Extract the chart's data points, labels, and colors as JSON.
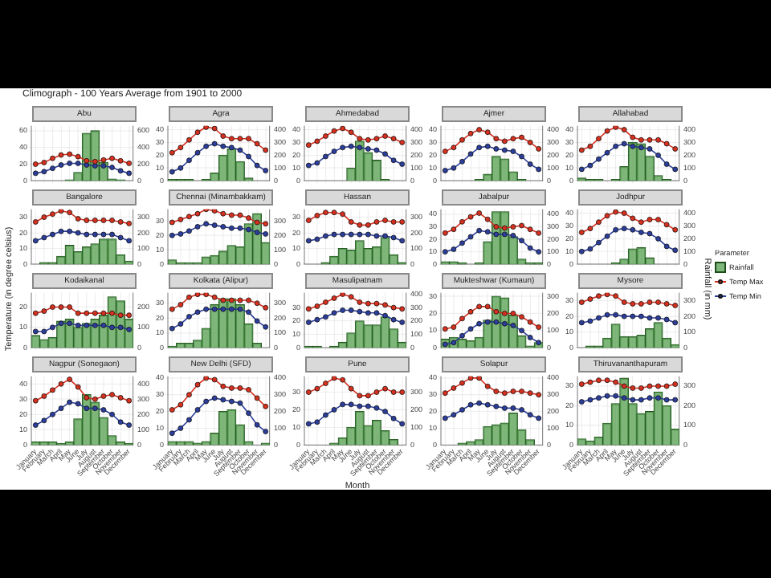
{
  "chart_data": [
    {
      "type": "other",
      "title": "Climograph - 100 Years Average from 1901 to 2000"
    },
    {
      "type": "bar",
      "title": "Abu",
      "categories": [
        null,
        null,
        null,
        null,
        null,
        null,
        null,
        null,
        null,
        null,
        null,
        null
      ],
      "ylim": [
        0,
        66
      ],
      "yticks": [
        0,
        20,
        40,
        60
      ],
      "y2lim": [
        0,
        660
      ],
      "y2ticks": [
        0,
        200,
        400,
        600
      ],
      "grid": true,
      "marker": "circle",
      "tick_labels": "y",
      "series": [
        {
          "type": "bar",
          "axis": "y2",
          "color": "#5fa55a",
          "values": [
            0,
            0,
            0,
            0,
            10,
            100,
            570,
            600,
            220,
            20,
            10,
            0
          ]
        },
        {
          "type": "line",
          "color": "#d7301f",
          "values": [
            20,
            22,
            27,
            31,
            32,
            29,
            24,
            23,
            25,
            27,
            24,
            21
          ]
        },
        {
          "type": "line",
          "color": "#2c3e9c",
          "values": [
            9,
            11,
            15,
            19,
            21,
            21,
            19,
            18,
            18,
            16,
            12,
            9
          ]
        }
      ]
    },
    {
      "type": "bar",
      "title": "Agra",
      "categories": [
        null,
        null,
        null,
        null,
        null,
        null,
        null,
        null,
        null,
        null,
        null,
        null
      ],
      "ylim": [
        0,
        43
      ],
      "yticks": [
        0,
        10,
        20,
        30,
        40
      ],
      "y2lim": [
        0,
        430
      ],
      "y2ticks": [
        0,
        100,
        200,
        300,
        400
      ],
      "grid": true,
      "marker": "circle",
      "tick_labels": "y",
      "series": [
        {
          "type": "bar",
          "axis": "y2",
          "color": "#5fa55a",
          "values": [
            10,
            10,
            10,
            0,
            10,
            60,
            200,
            250,
            150,
            20,
            0,
            0
          ]
        },
        {
          "type": "line",
          "color": "#d7301f",
          "values": [
            22,
            26,
            32,
            38,
            42,
            41,
            35,
            33,
            33,
            33,
            29,
            24
          ]
        },
        {
          "type": "line",
          "color": "#2c3e9c",
          "values": [
            7,
            10,
            16,
            22,
            27,
            29,
            27,
            26,
            24,
            19,
            12,
            8
          ]
        }
      ]
    },
    {
      "type": "bar",
      "title": "Ahmedabad",
      "categories": [
        null,
        null,
        null,
        null,
        null,
        null,
        null,
        null,
        null,
        null,
        null,
        null
      ],
      "ylim": [
        0,
        43
      ],
      "yticks": [
        0,
        10,
        20,
        30,
        40
      ],
      "y2lim": [
        0,
        430
      ],
      "y2ticks": [
        0,
        100,
        200,
        300,
        400
      ],
      "grid": true,
      "marker": "circle",
      "tick_labels": "y",
      "series": [
        {
          "type": "bar",
          "axis": "y2",
          "color": "#5fa55a",
          "values": [
            0,
            0,
            0,
            0,
            0,
            100,
            310,
            220,
            160,
            10,
            0,
            0
          ]
        },
        {
          "type": "line",
          "color": "#d7301f",
          "values": [
            28,
            31,
            35,
            39,
            41,
            38,
            33,
            32,
            33,
            35,
            33,
            30
          ]
        },
        {
          "type": "line",
          "color": "#2c3e9c",
          "values": [
            12,
            14,
            19,
            23,
            26,
            27,
            26,
            25,
            24,
            21,
            16,
            13
          ]
        }
      ]
    },
    {
      "type": "bar",
      "title": "Ajmer",
      "categories": [
        null,
        null,
        null,
        null,
        null,
        null,
        null,
        null,
        null,
        null,
        null,
        null
      ],
      "ylim": [
        0,
        43
      ],
      "yticks": [
        0,
        10,
        20,
        30,
        40
      ],
      "y2lim": [
        0,
        430
      ],
      "y2ticks": [
        0,
        100,
        200,
        300,
        400
      ],
      "grid": true,
      "marker": "circle",
      "tick_labels": "y",
      "series": [
        {
          "type": "bar",
          "axis": "y2",
          "color": "#5fa55a",
          "values": [
            0,
            0,
            0,
            0,
            10,
            50,
            190,
            170,
            70,
            10,
            0,
            0
          ]
        },
        {
          "type": "line",
          "color": "#d7301f",
          "values": [
            23,
            26,
            32,
            37,
            40,
            38,
            33,
            31,
            33,
            34,
            30,
            25
          ]
        },
        {
          "type": "line",
          "color": "#2c3e9c",
          "values": [
            8,
            10,
            15,
            21,
            26,
            27,
            25,
            24,
            23,
            19,
            13,
            9
          ]
        }
      ]
    },
    {
      "type": "bar",
      "title": "Allahabad",
      "categories": [
        null,
        null,
        null,
        null,
        null,
        null,
        null,
        null,
        null,
        null,
        null,
        null
      ],
      "ylim": [
        0,
        43
      ],
      "yticks": [
        0,
        10,
        20,
        30,
        40
      ],
      "y2lim": [
        0,
        430
      ],
      "y2ticks": [
        0,
        100,
        200,
        300,
        400
      ],
      "grid": true,
      "marker": "circle",
      "tick_labels": "y",
      "series": [
        {
          "type": "bar",
          "axis": "y2",
          "color": "#5fa55a",
          "values": [
            20,
            10,
            10,
            0,
            10,
            110,
            300,
            290,
            190,
            40,
            10,
            0
          ]
        },
        {
          "type": "line",
          "color": "#d7301f",
          "values": [
            24,
            27,
            33,
            39,
            42,
            40,
            34,
            32,
            32,
            32,
            29,
            25
          ]
        },
        {
          "type": "line",
          "color": "#2c3e9c",
          "values": [
            9,
            12,
            17,
            22,
            27,
            29,
            27,
            26,
            25,
            20,
            13,
            9
          ]
        }
      ]
    },
    {
      "type": "bar",
      "title": "Bangalore",
      "categories": [
        null,
        null,
        null,
        null,
        null,
        null,
        null,
        null,
        null,
        null,
        null,
        null
      ],
      "ylim": [
        0,
        35
      ],
      "yticks": [
        0,
        10,
        20,
        30
      ],
      "y2lim": [
        0,
        350
      ],
      "y2ticks": [
        0,
        100,
        200,
        300
      ],
      "grid": true,
      "marker": "circle",
      "tick_labels": "y",
      "series": [
        {
          "type": "bar",
          "axis": "y2",
          "color": "#5fa55a",
          "values": [
            0,
            10,
            10,
            50,
            120,
            80,
            110,
            130,
            160,
            160,
            60,
            20
          ]
        },
        {
          "type": "line",
          "color": "#d7301f",
          "values": [
            27,
            30,
            32,
            34,
            33,
            29,
            28,
            28,
            28,
            28,
            27,
            26
          ]
        },
        {
          "type": "line",
          "color": "#2c3e9c",
          "values": [
            15,
            17,
            19,
            21,
            21,
            20,
            19,
            19,
            19,
            19,
            17,
            15
          ]
        }
      ]
    },
    {
      "type": "bar",
      "title": "Chennai (Minambakkam)",
      "categories": [
        null,
        null,
        null,
        null,
        null,
        null,
        null,
        null,
        null,
        null,
        null,
        null
      ],
      "ylim": [
        0,
        38
      ],
      "yticks": [
        0,
        10,
        20,
        30
      ],
      "y2lim": [
        0,
        380
      ],
      "y2ticks": [
        0,
        100,
        200,
        300
      ],
      "grid": true,
      "marker": "circle",
      "tick_labels": "y",
      "series": [
        {
          "type": "bar",
          "axis": "y2",
          "color": "#5fa55a",
          "values": [
            30,
            10,
            10,
            10,
            50,
            60,
            90,
            130,
            120,
            280,
            350,
            150
          ]
        },
        {
          "type": "line",
          "color": "#d7301f",
          "values": [
            29,
            31,
            33,
            35,
            38,
            37,
            35,
            34,
            34,
            32,
            29,
            28
          ]
        },
        {
          "type": "line",
          "color": "#2c3e9c",
          "values": [
            20,
            21,
            23,
            26,
            28,
            27,
            26,
            25,
            25,
            24,
            22,
            21
          ]
        }
      ]
    },
    {
      "type": "bar",
      "title": "Hassan",
      "categories": [
        null,
        null,
        null,
        null,
        null,
        null,
        null,
        null,
        null,
        null,
        null,
        null
      ],
      "ylim": [
        0,
        35
      ],
      "yticks": [
        0,
        10,
        20,
        30
      ],
      "y2lim": [
        0,
        350
      ],
      "y2ticks": [
        0,
        100,
        200,
        300
      ],
      "grid": true,
      "marker": "circle",
      "tick_labels": "y",
      "series": [
        {
          "type": "bar",
          "axis": "y2",
          "color": "#5fa55a",
          "values": [
            0,
            0,
            10,
            50,
            100,
            90,
            150,
            100,
            110,
            170,
            60,
            10
          ]
        },
        {
          "type": "line",
          "color": "#d7301f",
          "values": [
            28,
            31,
            33,
            33,
            32,
            27,
            25,
            25,
            27,
            28,
            27,
            27
          ]
        },
        {
          "type": "line",
          "color": "#2c3e9c",
          "values": [
            15,
            16,
            18,
            19,
            19,
            19,
            19,
            19,
            18,
            18,
            17,
            15
          ]
        }
      ]
    },
    {
      "type": "bar",
      "title": "Jabalpur",
      "categories": [
        null,
        null,
        null,
        null,
        null,
        null,
        null,
        null,
        null,
        null,
        null,
        null
      ],
      "ylim": [
        0,
        44
      ],
      "yticks": [
        0,
        10,
        20,
        30,
        40
      ],
      "y2lim": [
        0,
        440
      ],
      "y2ticks": [
        0,
        100,
        200,
        300,
        400
      ],
      "grid": true,
      "marker": "circle",
      "tick_labels": "y",
      "series": [
        {
          "type": "bar",
          "axis": "y2",
          "color": "#5fa55a",
          "values": [
            20,
            20,
            10,
            0,
            10,
            180,
            420,
            420,
            220,
            40,
            10,
            10
          ]
        },
        {
          "type": "line",
          "color": "#d7301f",
          "values": [
            25,
            28,
            34,
            38,
            41,
            36,
            30,
            29,
            30,
            31,
            28,
            25
          ]
        },
        {
          "type": "line",
          "color": "#2c3e9c",
          "values": [
            10,
            12,
            17,
            22,
            27,
            26,
            24,
            24,
            23,
            19,
            13,
            10
          ]
        }
      ]
    },
    {
      "type": "bar",
      "title": "Jodhpur",
      "categories": [
        null,
        null,
        null,
        null,
        null,
        null,
        null,
        null,
        null,
        null,
        null,
        null
      ],
      "ylim": [
        0,
        43
      ],
      "yticks": [
        0,
        10,
        20,
        30,
        40
      ],
      "y2lim": [
        0,
        430
      ],
      "y2ticks": [
        0,
        100,
        200,
        300,
        400
      ],
      "grid": true,
      "marker": "circle",
      "tick_labels": "y",
      "legend": "right",
      "legend_title": "Parameter",
      "y2label": "Rainfall (in mm)",
      "series": [
        {
          "type": "bar",
          "axis": "y2",
          "name": "Rainfall",
          "color": "#5fa55a",
          "values": [
            0,
            0,
            0,
            0,
            10,
            40,
            120,
            130,
            50,
            0,
            0,
            0
          ]
        },
        {
          "type": "line",
          "name": "Temp Max",
          "color": "#d7301f",
          "values": [
            25,
            28,
            33,
            38,
            41,
            40,
            36,
            33,
            35,
            35,
            31,
            27
          ]
        },
        {
          "type": "line",
          "name": "Temp Min",
          "color": "#2c3e9c",
          "values": [
            10,
            12,
            17,
            22,
            27,
            28,
            27,
            25,
            24,
            20,
            14,
            11
          ]
        }
      ]
    },
    {
      "type": "bar",
      "title": "Kodaikanal",
      "categories": [
        null,
        null,
        null,
        null,
        null,
        null,
        null,
        null,
        null,
        null,
        null,
        null
      ],
      "ylim": [
        0,
        27
      ],
      "yticks": [
        0,
        10,
        20
      ],
      "y2lim": [
        0,
        270
      ],
      "y2ticks": [
        0,
        100,
        200
      ],
      "grid": true,
      "marker": "circle",
      "tick_labels": "y",
      "ylabel": "Temperature (in degree celsius)",
      "series": [
        {
          "type": "bar",
          "axis": "y2",
          "color": "#5fa55a",
          "values": [
            60,
            40,
            50,
            130,
            140,
            100,
            120,
            140,
            160,
            250,
            230,
            140
          ]
        },
        {
          "type": "line",
          "color": "#d7301f",
          "values": [
            17,
            18,
            20,
            20,
            20,
            17,
            17,
            17,
            17,
            17,
            16,
            16
          ]
        },
        {
          "type": "line",
          "color": "#2c3e9c",
          "values": [
            8,
            8,
            10,
            12,
            12,
            11,
            11,
            11,
            11,
            10,
            10,
            9
          ]
        }
      ]
    },
    {
      "type": "bar",
      "title": "Kolkata (Alipur)",
      "categories": [
        null,
        null,
        null,
        null,
        null,
        null,
        null,
        null,
        null,
        null,
        null,
        null
      ],
      "ylim": [
        0,
        37
      ],
      "yticks": [
        0,
        10,
        20,
        30
      ],
      "y2lim": [
        0,
        370
      ],
      "y2ticks": [
        0,
        100,
        200,
        300
      ],
      "grid": true,
      "marker": "circle",
      "tick_labels": "y",
      "series": [
        {
          "type": "bar",
          "axis": "y2",
          "color": "#5fa55a",
          "values": [
            10,
            30,
            30,
            50,
            130,
            290,
            330,
            330,
            290,
            160,
            30,
            0
          ]
        },
        {
          "type": "line",
          "color": "#d7301f",
          "values": [
            26,
            29,
            34,
            36,
            36,
            34,
            32,
            32,
            32,
            32,
            30,
            27
          ]
        },
        {
          "type": "line",
          "color": "#2c3e9c",
          "values": [
            13,
            16,
            21,
            24,
            26,
            26,
            26,
            26,
            26,
            24,
            18,
            14
          ]
        }
      ]
    },
    {
      "type": "bar",
      "title": "Masulipatnam",
      "categories": [
        null,
        null,
        null,
        null,
        null,
        null,
        null,
        null,
        null,
        null,
        null,
        null
      ],
      "ylim": [
        0,
        41
      ],
      "yticks": [
        0,
        10,
        20,
        30
      ],
      "y2lim": [
        0,
        410
      ],
      "y2ticks": [
        0,
        100,
        200,
        300,
        400
      ],
      "grid": true,
      "marker": "circle",
      "tick_labels": "y",
      "series": [
        {
          "type": "bar",
          "axis": "y2",
          "color": "#5fa55a",
          "values": [
            10,
            10,
            0,
            10,
            40,
            110,
            200,
            170,
            170,
            230,
            140,
            40
          ]
        },
        {
          "type": "line",
          "color": "#d7301f",
          "values": [
            29,
            31,
            34,
            37,
            40,
            38,
            34,
            33,
            33,
            32,
            30,
            29
          ]
        },
        {
          "type": "line",
          "color": "#2c3e9c",
          "values": [
            19,
            21,
            23,
            26,
            28,
            28,
            27,
            26,
            26,
            24,
            21,
            19
          ]
        }
      ]
    },
    {
      "type": "bar",
      "title": "Mukteshwar (Kumaun)",
      "categories": [
        null,
        null,
        null,
        null,
        null,
        null,
        null,
        null,
        null,
        null,
        null,
        null
      ],
      "ylim": [
        0,
        32
      ],
      "yticks": [
        0,
        10,
        20,
        30
      ],
      "y2lim": [
        0,
        320
      ],
      "y2ticks": [
        0,
        100,
        200,
        300
      ],
      "grid": true,
      "marker": "circle",
      "tick_labels": "y",
      "series": [
        {
          "type": "bar",
          "axis": "y2",
          "color": "#5fa55a",
          "values": [
            50,
            60,
            50,
            40,
            60,
            160,
            300,
            290,
            190,
            70,
            10,
            30
          ]
        },
        {
          "type": "line",
          "color": "#d7301f",
          "values": [
            11,
            12,
            17,
            21,
            24,
            24,
            21,
            20,
            20,
            18,
            15,
            12
          ]
        },
        {
          "type": "line",
          "color": "#2c3e9c",
          "values": [
            2,
            3,
            7,
            11,
            14,
            15,
            15,
            14,
            13,
            10,
            6,
            3
          ]
        }
      ]
    },
    {
      "type": "bar",
      "title": "Mysore",
      "categories": [
        null,
        null,
        null,
        null,
        null,
        null,
        null,
        null,
        null,
        null,
        null,
        null
      ],
      "ylim": [
        0,
        35
      ],
      "yticks": [
        0,
        10,
        20,
        30
      ],
      "y2lim": [
        0,
        350
      ],
      "y2ticks": [
        0,
        100,
        200,
        300
      ],
      "grid": true,
      "marker": "circle",
      "tick_labels": "y",
      "series": [
        {
          "type": "bar",
          "axis": "y2",
          "color": "#5fa55a",
          "values": [
            0,
            10,
            10,
            60,
            150,
            70,
            70,
            80,
            120,
            160,
            60,
            20
          ]
        },
        {
          "type": "line",
          "color": "#d7301f",
          "values": [
            29,
            31,
            33,
            34,
            33,
            29,
            28,
            28,
            29,
            29,
            28,
            27
          ]
        },
        {
          "type": "line",
          "color": "#2c3e9c",
          "values": [
            16,
            17,
            19,
            21,
            21,
            20,
            20,
            20,
            19,
            19,
            18,
            16
          ]
        }
      ]
    },
    {
      "type": "bar",
      "title": "Nagpur (Sonegaon)",
      "categories": [
        "January",
        "February",
        "March",
        "April",
        "May",
        "June",
        "July",
        "August",
        "September",
        "October",
        "November",
        "December"
      ],
      "ylim": [
        0,
        45
      ],
      "yticks": [
        0,
        10,
        20,
        30,
        40
      ],
      "y2lim": [
        0,
        450
      ],
      "y2ticks": [
        0,
        100,
        200,
        300,
        400
      ],
      "grid": true,
      "marker": "circle",
      "series": [
        {
          "type": "bar",
          "axis": "y2",
          "color": "#5fa55a",
          "values": [
            20,
            20,
            20,
            10,
            20,
            170,
            330,
            280,
            180,
            60,
            20,
            10
          ]
        },
        {
          "type": "line",
          "color": "#d7301f",
          "values": [
            29,
            32,
            36,
            40,
            43,
            38,
            31,
            30,
            32,
            33,
            31,
            29
          ]
        },
        {
          "type": "line",
          "color": "#2c3e9c",
          "values": [
            13,
            16,
            20,
            24,
            28,
            27,
            24,
            24,
            23,
            20,
            15,
            13
          ]
        }
      ]
    },
    {
      "type": "bar",
      "title": "New Delhi (SFD)",
      "categories": [
        "January",
        "February",
        "March",
        "April",
        "May",
        "June",
        "July",
        "August",
        "September",
        "October",
        "November",
        "December"
      ],
      "ylim": [
        0,
        41
      ],
      "yticks": [
        0,
        10,
        20,
        30,
        40
      ],
      "y2lim": [
        0,
        410
      ],
      "y2ticks": [
        0,
        100,
        200,
        300,
        400
      ],
      "grid": true,
      "marker": "circle",
      "series": [
        {
          "type": "bar",
          "axis": "y2",
          "color": "#5fa55a",
          "values": [
            20,
            20,
            20,
            10,
            20,
            70,
            200,
            210,
            120,
            20,
            0,
            10
          ]
        },
        {
          "type": "line",
          "color": "#d7301f",
          "values": [
            21,
            24,
            30,
            36,
            40,
            39,
            35,
            34,
            34,
            33,
            28,
            23
          ]
        },
        {
          "type": "line",
          "color": "#2c3e9c",
          "values": [
            7,
            10,
            15,
            21,
            26,
            28,
            27,
            26,
            25,
            19,
            12,
            8
          ]
        }
      ]
    },
    {
      "type": "bar",
      "title": "Pune",
      "categories": [
        "January",
        "February",
        "March",
        "April",
        "May",
        "June",
        "July",
        "August",
        "September",
        "October",
        "November",
        "December"
      ],
      "ylim": [
        0,
        39
      ],
      "yticks": [
        0,
        10,
        20,
        30
      ],
      "y2lim": [
        0,
        390
      ],
      "y2ticks": [
        0,
        100,
        200,
        300
      ],
      "grid": true,
      "marker": "circle",
      "xlabel": "Month",
      "series": [
        {
          "type": "bar",
          "axis": "y2",
          "color": "#5fa55a",
          "values": [
            0,
            0,
            0,
            10,
            40,
            100,
            190,
            110,
            140,
            80,
            30,
            0
          ]
        },
        {
          "type": "line",
          "color": "#d7301f",
          "values": [
            30,
            32,
            35,
            38,
            37,
            32,
            28,
            28,
            30,
            32,
            30,
            30
          ]
        },
        {
          "type": "line",
          "color": "#2c3e9c",
          "values": [
            12,
            13,
            17,
            20,
            23,
            23,
            22,
            22,
            21,
            19,
            15,
            12
          ]
        }
      ]
    },
    {
      "type": "bar",
      "title": "Solapur",
      "categories": [
        "January",
        "February",
        "March",
        "April",
        "May",
        "June",
        "July",
        "August",
        "September",
        "October",
        "November",
        "December"
      ],
      "ylim": [
        0,
        41
      ],
      "yticks": [
        0,
        10,
        20,
        30,
        40
      ],
      "y2lim": [
        0,
        410
      ],
      "y2ticks": [
        0,
        100,
        200,
        300,
        400
      ],
      "grid": true,
      "marker": "circle",
      "series": [
        {
          "type": "bar",
          "axis": "y2",
          "color": "#5fa55a",
          "values": [
            0,
            0,
            10,
            20,
            30,
            110,
            120,
            130,
            190,
            90,
            30,
            0
          ]
        },
        {
          "type": "line",
          "color": "#d7301f",
          "values": [
            31,
            34,
            37,
            40,
            40,
            35,
            32,
            31,
            32,
            32,
            31,
            30
          ]
        },
        {
          "type": "line",
          "color": "#2c3e9c",
          "values": [
            16,
            18,
            21,
            24,
            25,
            24,
            23,
            22,
            22,
            21,
            18,
            16
          ]
        }
      ]
    },
    {
      "type": "bar",
      "title": "Thiruvananthapuram",
      "categories": [
        "January",
        "February",
        "March",
        "April",
        "May",
        "June",
        "July",
        "August",
        "September",
        "October",
        "November",
        "December"
      ],
      "ylim": [
        0,
        35
      ],
      "yticks": [
        0,
        10,
        20,
        30
      ],
      "y2lim": [
        0,
        350
      ],
      "y2ticks": [
        0,
        100,
        200,
        300
      ],
      "grid": true,
      "marker": "circle",
      "series": [
        {
          "type": "bar",
          "axis": "y2",
          "color": "#5fa55a",
          "values": [
            30,
            20,
            40,
            110,
            210,
            340,
            210,
            160,
            170,
            270,
            200,
            80
          ]
        },
        {
          "type": "line",
          "color": "#d7301f",
          "values": [
            31,
            32,
            33,
            33,
            32,
            30,
            29,
            29,
            30,
            30,
            30,
            31
          ]
        },
        {
          "type": "line",
          "color": "#2c3e9c",
          "values": [
            22,
            23,
            24,
            25,
            25,
            24,
            23,
            23,
            24,
            24,
            23,
            23
          ]
        }
      ]
    }
  ]
}
